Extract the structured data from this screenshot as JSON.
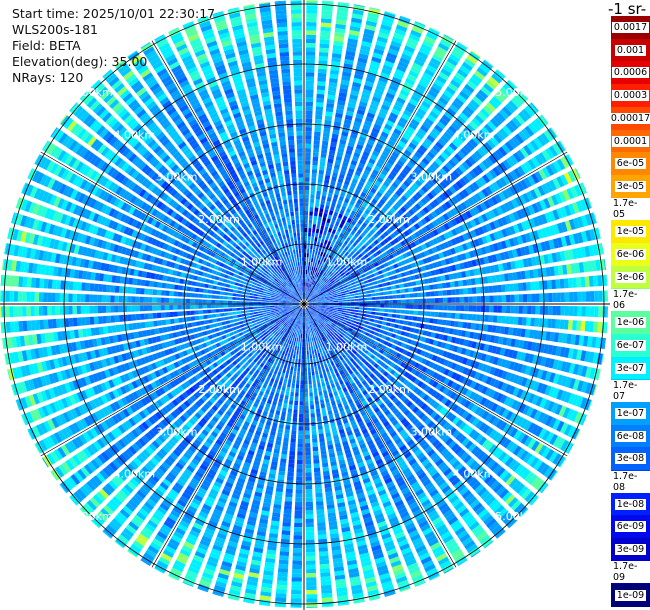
{
  "header": {
    "start_time": "Start time: 2025/10/01 22:30:17",
    "instrument": "WLS200s-181",
    "field": "Field: BETA",
    "elevation": "Elevation(deg): 35.00",
    "nrays": "NRays: 120"
  },
  "colorbar": {
    "unit_label": "-1 sr-",
    "ticks": [
      {
        "label": "0.0017",
        "color": "#9a0000"
      },
      {
        "label": "0.001",
        "color": "#c80000"
      },
      {
        "label": "0.0006",
        "color": "#e60000"
      },
      {
        "label": "0.0003",
        "color": "#ff1e00"
      },
      {
        "label": "0.00017",
        "color": "#ff4a00"
      },
      {
        "label": "0.0001",
        "color": "#ff6a00"
      },
      {
        "label": "6e-05",
        "color": "#ff8800"
      },
      {
        "label": "3e-05",
        "color": "#ffa400"
      },
      {
        "label": "1.7e-05",
        "color": "#ffc400"
      },
      {
        "label": "1e-05",
        "color": "#ffe800"
      },
      {
        "label": "6e-06",
        "color": "#eaff1a"
      },
      {
        "label": "3e-06",
        "color": "#c0ff40"
      },
      {
        "label": "1.7e-06",
        "color": "#8cff6a"
      },
      {
        "label": "1e-06",
        "color": "#5affa0"
      },
      {
        "label": "6e-07",
        "color": "#2affd4"
      },
      {
        "label": "3e-07",
        "color": "#00f0ff"
      },
      {
        "label": "1.7e-07",
        "color": "#00c8ff"
      },
      {
        "label": "1e-07",
        "color": "#00a0ff"
      },
      {
        "label": "6e-08",
        "color": "#0080ff"
      },
      {
        "label": "3e-08",
        "color": "#0062ff"
      },
      {
        "label": "1.7e-08",
        "color": "#0040ff"
      },
      {
        "label": "1e-08",
        "color": "#0020ff"
      },
      {
        "label": "6e-09",
        "color": "#0008ee"
      },
      {
        "label": "3e-09",
        "color": "#0000cc"
      },
      {
        "label": "1.7e-09",
        "color": "#0000a0"
      },
      {
        "label": "1e-09",
        "color": "#000078"
      }
    ]
  },
  "chart_data": {
    "type": "heatmap",
    "projection": "polar-ppi",
    "field": "BETA",
    "elevation_deg": 35.0,
    "n_rays": 120,
    "max_range_km": 5.0,
    "range_rings_km": [
      1,
      2,
      3,
      4,
      5
    ],
    "range_ring_labels": [
      "1.00km",
      "2.00km",
      "3.00km",
      "4.00km",
      "5.00km"
    ],
    "spokes_deg": [
      0,
      30,
      60,
      90,
      120,
      150,
      180,
      210,
      240,
      270,
      300,
      330
    ],
    "colormap": "jet",
    "color_scale": "log",
    "value_range": [
      1e-09,
      0.0017
    ],
    "approx_beta_by_range": [
      {
        "range_km": 0.5,
        "beta": 3e-08
      },
      {
        "range_km": 1.5,
        "beta": 6e-08
      },
      {
        "range_km": 2.5,
        "beta": 6e-08
      },
      {
        "range_km": 3.5,
        "beta": 1e-07
      },
      {
        "range_km": 4.3,
        "beta": 1.7e-07
      },
      {
        "range_km": 4.8,
        "beta": 3e-07
      }
    ],
    "grid": true
  }
}
